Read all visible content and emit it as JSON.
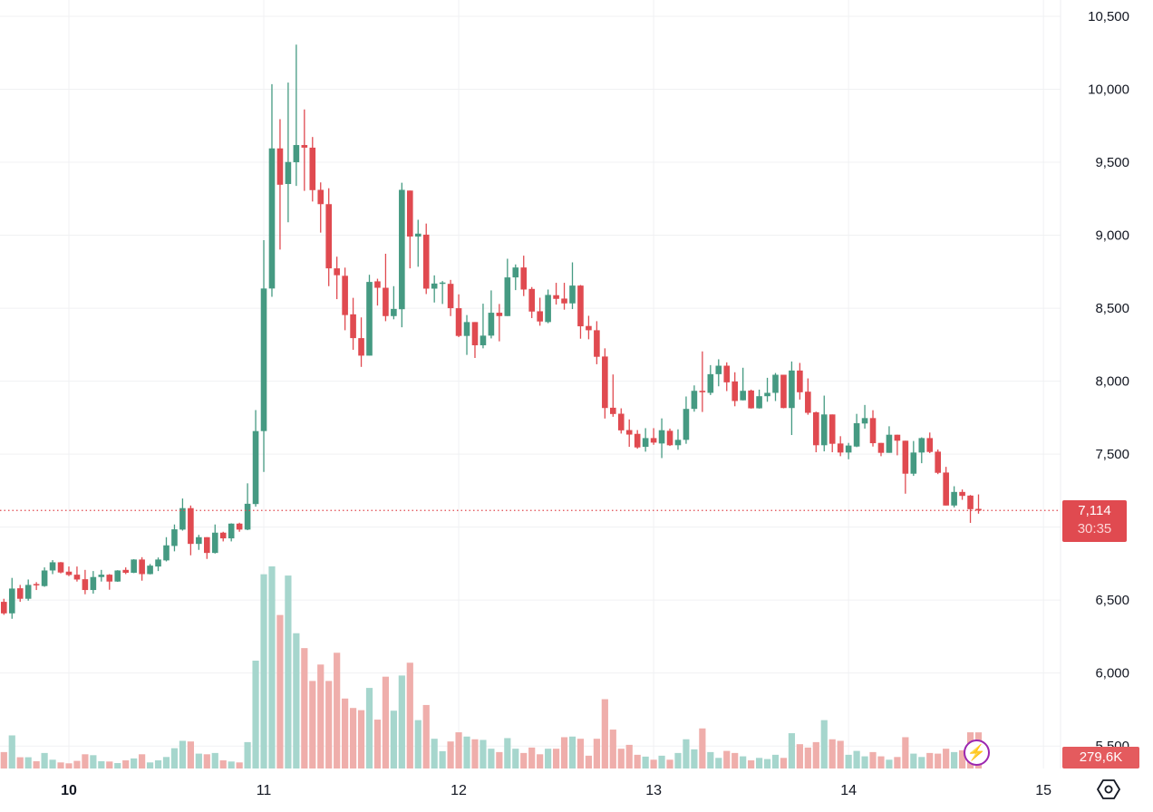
{
  "chart_data": {
    "type": "candlestick",
    "interval": "1h",
    "ylim": [
      5400,
      10600
    ],
    "yticks": [
      {
        "value": 10500,
        "label": "10,500"
      },
      {
        "value": 10000,
        "label": "10,000"
      },
      {
        "value": 9500,
        "label": "9,500"
      },
      {
        "value": 9000,
        "label": "9,000"
      },
      {
        "value": 8500,
        "label": "8,500"
      },
      {
        "value": 8000,
        "label": "8,000"
      },
      {
        "value": 7500,
        "label": "7,500"
      },
      {
        "value": 6500,
        "label": "6,500"
      },
      {
        "value": 6000,
        "label": "6,000"
      },
      {
        "value": 5500,
        "label": "5,500"
      }
    ],
    "xticks": [
      {
        "label": "10",
        "candle_index": 8,
        "bold": true
      },
      {
        "label": "11",
        "candle_index": 32,
        "bold": false
      },
      {
        "label": "12",
        "candle_index": 56,
        "bold": false
      },
      {
        "label": "13",
        "candle_index": 80,
        "bold": false
      },
      {
        "label": "14",
        "candle_index": 104,
        "bold": false
      },
      {
        "label": "15",
        "candle_index": 128,
        "bold": false
      }
    ],
    "candle_fields": [
      "open",
      "high",
      "low",
      "close",
      "volume_k"
    ],
    "candles": [
      [
        6488,
        6509,
        6399,
        6409,
        127
      ],
      [
        6409,
        6652,
        6372,
        6579,
        256
      ],
      [
        6581,
        6604,
        6488,
        6509,
        87
      ],
      [
        6509,
        6641,
        6496,
        6604,
        87
      ],
      [
        6610,
        6623,
        6569,
        6602,
        56
      ],
      [
        6596,
        6724,
        6591,
        6703,
        120
      ],
      [
        6703,
        6774,
        6678,
        6759,
        68
      ],
      [
        6759,
        6761,
        6683,
        6689,
        47
      ],
      [
        6695,
        6730,
        6664,
        6672,
        40
      ],
      [
        6674,
        6730,
        6627,
        6641,
        59
      ],
      [
        6643,
        6707,
        6540,
        6569,
        110
      ],
      [
        6569,
        6699,
        6544,
        6658,
        103
      ],
      [
        6658,
        6707,
        6627,
        6674,
        56
      ],
      [
        6674,
        6678,
        6571,
        6627,
        54
      ],
      [
        6627,
        6705,
        6625,
        6703,
        42
      ],
      [
        6707,
        6724,
        6678,
        6687,
        63
      ],
      [
        6687,
        6780,
        6685,
        6778,
        78
      ],
      [
        6778,
        6794,
        6633,
        6678,
        110
      ],
      [
        6678,
        6747,
        6676,
        6736,
        47
      ],
      [
        6730,
        6792,
        6699,
        6778,
        63
      ],
      [
        6772,
        6931,
        6765,
        6875,
        89
      ],
      [
        6871,
        7018,
        6834,
        6985,
        157
      ],
      [
        6983,
        7196,
        6976,
        7130,
        214
      ],
      [
        7130,
        7148,
        6807,
        6885,
        209
      ],
      [
        6885,
        6947,
        6844,
        6931,
        115
      ],
      [
        6931,
        6931,
        6782,
        6823,
        110
      ],
      [
        6823,
        7018,
        6819,
        6962,
        120
      ],
      [
        6962,
        6968,
        6902,
        6923,
        63
      ],
      [
        6923,
        7026,
        6902,
        7024,
        54
      ],
      [
        7024,
        7030,
        6968,
        6983,
        47
      ],
      [
        6983,
        7300,
        6979,
        7160,
        204
      ],
      [
        7158,
        7802,
        7140,
        7658,
        834
      ],
      [
        7658,
        8966,
        7378,
        8635,
        1502
      ],
      [
        8635,
        10035,
        8578,
        9595,
        1563
      ],
      [
        9595,
        9795,
        8902,
        9346,
        1187
      ],
      [
        9351,
        10046,
        9089,
        9502,
        1492
      ],
      [
        9500,
        10306,
        9338,
        9618,
        1046
      ],
      [
        9618,
        9862,
        9304,
        9600,
        931
      ],
      [
        9600,
        9673,
        9231,
        9309,
        677
      ],
      [
        9311,
        9362,
        9018,
        9213,
        804
      ],
      [
        9213,
        9322,
        8651,
        8773,
        677
      ],
      [
        8773,
        8853,
        8562,
        8726,
        895
      ],
      [
        8722,
        8778,
        8349,
        8453,
        541
      ],
      [
        8458,
        8571,
        8215,
        8295,
        468
      ],
      [
        8295,
        8437,
        8098,
        8175,
        451
      ],
      [
        8175,
        8729,
        8175,
        8680,
        623
      ],
      [
        8684,
        8702,
        8518,
        8640,
        378
      ],
      [
        8640,
        8873,
        8411,
        8446,
        710
      ],
      [
        8446,
        8651,
        8424,
        8495,
        447
      ],
      [
        8493,
        9360,
        8369,
        9311,
        719
      ],
      [
        9306,
        9306,
        8773,
        8991,
        818
      ],
      [
        8991,
        9106,
        8784,
        9011,
        374
      ],
      [
        9004,
        9080,
        8597,
        8634,
        491
      ],
      [
        8634,
        8725,
        8539,
        8669,
        230
      ],
      [
        8669,
        8686,
        8529,
        8676,
        134
      ],
      [
        8667,
        8694,
        8446,
        8500,
        209
      ],
      [
        8500,
        8595,
        8302,
        8310,
        280
      ],
      [
        8310,
        8453,
        8180,
        8405,
        247
      ],
      [
        8405,
        8405,
        8159,
        8246,
        226
      ],
      [
        8246,
        8531,
        8225,
        8312,
        221
      ],
      [
        8312,
        8622,
        8293,
        8469,
        153
      ],
      [
        8469,
        8529,
        8273,
        8446,
        127
      ],
      [
        8446,
        8839,
        8446,
        8711,
        235
      ],
      [
        8711,
        8800,
        8624,
        8779,
        153
      ],
      [
        8779,
        8860,
        8583,
        8628,
        120
      ],
      [
        8632,
        8645,
        8432,
        8477,
        162
      ],
      [
        8479,
        8572,
        8380,
        8409,
        110
      ],
      [
        8405,
        8628,
        8397,
        8591,
        153
      ],
      [
        8589,
        8674,
        8525,
        8564,
        153
      ],
      [
        8566,
        8674,
        8490,
        8533,
        242
      ],
      [
        8533,
        8814,
        8494,
        8655,
        247
      ],
      [
        8655,
        8659,
        8291,
        8376,
        230
      ],
      [
        8378,
        8448,
        8287,
        8349,
        99
      ],
      [
        8349,
        8411,
        8116,
        8167,
        230
      ],
      [
        8169,
        8225,
        7744,
        7816,
        536
      ],
      [
        7818,
        8046,
        7756,
        7775,
        301
      ],
      [
        7777,
        7814,
        7641,
        7663,
        153
      ],
      [
        7665,
        7738,
        7550,
        7634,
        183
      ],
      [
        7639,
        7665,
        7537,
        7546,
        106
      ],
      [
        7550,
        7678,
        7517,
        7610,
        92
      ],
      [
        7610,
        7678,
        7564,
        7579,
        68
      ],
      [
        7573,
        7745,
        7473,
        7664,
        99
      ],
      [
        7660,
        7675,
        7556,
        7561,
        68
      ],
      [
        7561,
        7670,
        7530,
        7598,
        120
      ],
      [
        7598,
        7895,
        7571,
        7810,
        226
      ],
      [
        7810,
        7971,
        7791,
        7934,
        148
      ],
      [
        7934,
        8204,
        7789,
        7924,
        310
      ],
      [
        7920,
        8110,
        7905,
        8048,
        127
      ],
      [
        8048,
        8150,
        7965,
        8106,
        82
      ],
      [
        8106,
        8129,
        7932,
        7992,
        136
      ],
      [
        7998,
        8061,
        7828,
        7864,
        120
      ],
      [
        7869,
        8092,
        7868,
        7934,
        94
      ],
      [
        7936,
        7942,
        7812,
        7814,
        63
      ],
      [
        7814,
        7942,
        7812,
        7897,
        82
      ],
      [
        7897,
        8023,
        7859,
        7920,
        73
      ],
      [
        7920,
        8056,
        7864,
        8044,
        106
      ],
      [
        8044,
        8044,
        7814,
        7816,
        82
      ],
      [
        7816,
        8135,
        7631,
        8073,
        273
      ],
      [
        8073,
        8125,
        7874,
        7924,
        188
      ],
      [
        7928,
        8019,
        7770,
        7783,
        162
      ],
      [
        7787,
        7791,
        7513,
        7561,
        204
      ],
      [
        7561,
        7901,
        7519,
        7772,
        374
      ],
      [
        7772,
        7772,
        7513,
        7571,
        226
      ],
      [
        7573,
        7623,
        7486,
        7511,
        214
      ],
      [
        7511,
        7577,
        7465,
        7559,
        106
      ],
      [
        7552,
        7776,
        7548,
        7712,
        136
      ],
      [
        7710,
        7837,
        7675,
        7747,
        94
      ],
      [
        7747,
        7801,
        7552,
        7575,
        127
      ],
      [
        7577,
        7577,
        7486,
        7509,
        94
      ],
      [
        7509,
        7691,
        7509,
        7633,
        68
      ],
      [
        7633,
        7633,
        7492,
        7592,
        89
      ],
      [
        7592,
        7592,
        7229,
        7366,
        242
      ],
      [
        7366,
        7590,
        7351,
        7511,
        115
      ],
      [
        7511,
        7615,
        7438,
        7610,
        89
      ],
      [
        7610,
        7648,
        7507,
        7515,
        120
      ],
      [
        7517,
        7532,
        7363,
        7372,
        115
      ],
      [
        7374,
        7413,
        7148,
        7148,
        153
      ],
      [
        7148,
        7280,
        7135,
        7241,
        127
      ],
      [
        7241,
        7258,
        7187,
        7214,
        141
      ],
      [
        7216,
        7220,
        7029,
        7123,
        280
      ],
      [
        7125,
        7224,
        7092,
        7114,
        279.6
      ]
    ],
    "last_price": {
      "value": 7114,
      "label": "7,114",
      "countdown": "30:35"
    },
    "last_volume": {
      "label": "279,6K"
    },
    "colors": {
      "up": "#459a82",
      "down": "#e04a50",
      "vol_up": "#a6d6cd",
      "vol_down": "#efaeab",
      "grid": "#f0f1f3",
      "price_line": "#e04a50"
    }
  },
  "icons": {
    "bolt": "⚡",
    "settings": "settings-hexagon-icon"
  }
}
